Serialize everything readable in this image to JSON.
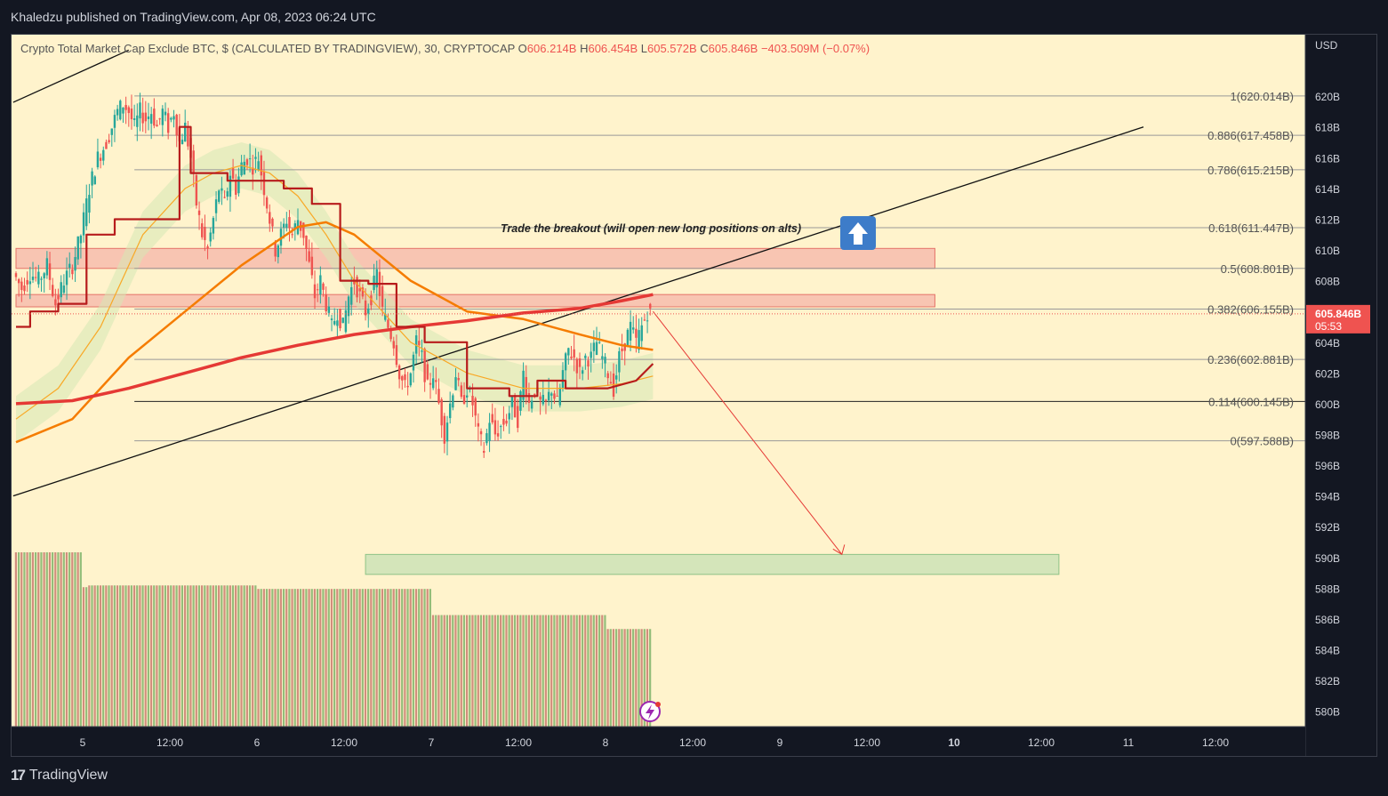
{
  "header": {
    "publisher_line": "Khaledzu published on TradingView.com, Apr 08, 2023 06:24 UTC"
  },
  "footer": {
    "logo_mark": "17",
    "logo_text": "TradingView"
  },
  "colors": {
    "background": "#fff3cc",
    "up": "#26a69a",
    "down": "#ef5350",
    "fib_line": "#999999",
    "ma_long": "#e53935",
    "ma_mid": "#f57c00",
    "ma_short": "#f9a825",
    "kijun": "#b71c1c",
    "zone_red": "#f4a7a0",
    "zone_green": "#b7dcae"
  },
  "chart_data": {
    "type": "candlestick",
    "title": "Crypto Total Market Cap Exclude BTC, $ (CALCULATED BY TRADINGVIEW), 30, CRYPTOCAP",
    "ohlc": {
      "open_label": "O",
      "open": "606.214B",
      "high_label": "H",
      "high": "606.454B",
      "low_label": "L",
      "low": "605.572B",
      "close_label": "C",
      "close": "605.846B",
      "change": "−403.509M (−0.07%)"
    },
    "currency": "USD",
    "ylim": [
      579,
      624
    ],
    "y_ticks": [
      "620B",
      "618B",
      "616B",
      "614B",
      "612B",
      "610B",
      "608B",
      "606B",
      "604B",
      "602B",
      "600B",
      "598B",
      "596B",
      "594B",
      "592B",
      "590B",
      "588B",
      "586B",
      "584B",
      "582B",
      "580B"
    ],
    "x_ticks": [
      "5",
      "12:00",
      "6",
      "12:00",
      "7",
      "12:00",
      "8",
      "12:00",
      "9",
      "12:00",
      "10",
      "12:00",
      "11",
      "12:00"
    ],
    "last_price": {
      "value": "605.846B",
      "countdown": "05:53",
      "level": 605.846
    },
    "fib_levels": [
      {
        "label": "1(620.014B)",
        "value": 620.014
      },
      {
        "label": "0.886(617.458B)",
        "value": 617.458
      },
      {
        "label": "0.786(615.215B)",
        "value": 615.215
      },
      {
        "label": "0.618(611.447B)",
        "value": 611.447
      },
      {
        "label": "0.5(608.801B)",
        "value": 608.801
      },
      {
        "label": "0.382(606.155B)",
        "value": 606.155
      },
      {
        "label": "0.236(602.881B)",
        "value": 602.881
      },
      {
        "label": "0.114(600.145B)",
        "value": 600.145
      },
      {
        "label": "0(597.588B)",
        "value": 597.588
      }
    ],
    "annotation": "Trade the breakout (will open new long positions on alts)",
    "close_path": [
      [
        0,
        608.5
      ],
      [
        3,
        607.5
      ],
      [
        6,
        608.5
      ],
      [
        9,
        608
      ],
      [
        12,
        609
      ],
      [
        15,
        606.5
      ],
      [
        18,
        608
      ],
      [
        21,
        609
      ],
      [
        24,
        611
      ],
      [
        27,
        614
      ],
      [
        30,
        616
      ],
      [
        33,
        617
      ],
      [
        35,
        618
      ],
      [
        37,
        619
      ],
      [
        39,
        619.5
      ],
      [
        41,
        619
      ],
      [
        43,
        618
      ],
      [
        45,
        619
      ],
      [
        47,
        618.5
      ],
      [
        49,
        619
      ],
      [
        51,
        618
      ],
      [
        53,
        619
      ],
      [
        55,
        618
      ],
      [
        57,
        619
      ],
      [
        59,
        617
      ],
      [
        61,
        618
      ],
      [
        63,
        616
      ],
      [
        65,
        613
      ],
      [
        67,
        611
      ],
      [
        69,
        610
      ],
      [
        71,
        612
      ],
      [
        73,
        614
      ],
      [
        75,
        613
      ],
      [
        77,
        615
      ],
      [
        79,
        614
      ],
      [
        81,
        615.5
      ],
      [
        83,
        616
      ],
      [
        85,
        615.5
      ],
      [
        87,
        616
      ],
      [
        89,
        614
      ],
      [
        91,
        612
      ],
      [
        93,
        610
      ],
      [
        95,
        611
      ],
      [
        97,
        612
      ],
      [
        99,
        611
      ],
      [
        101,
        612
      ],
      [
        103,
        611
      ],
      [
        105,
        609
      ],
      [
        107,
        607
      ],
      [
        109,
        608
      ],
      [
        111,
        606.5
      ],
      [
        113,
        605
      ],
      [
        115,
        606
      ],
      [
        117,
        605
      ],
      [
        119,
        607
      ],
      [
        121,
        608
      ],
      [
        123,
        607
      ],
      [
        125,
        606
      ],
      [
        127,
        607
      ],
      [
        129,
        608.5
      ],
      [
        131,
        606
      ],
      [
        133,
        605
      ],
      [
        135,
        604
      ],
      [
        137,
        602
      ],
      [
        139,
        601
      ],
      [
        141,
        602
      ],
      [
        143,
        604
      ],
      [
        145,
        603
      ],
      [
        147,
        601
      ],
      [
        149,
        602
      ],
      [
        151,
        600
      ],
      [
        153,
        598
      ],
      [
        155,
        600
      ],
      [
        157,
        602
      ],
      [
        159,
        600
      ],
      [
        161,
        601
      ],
      [
        163,
        600
      ],
      [
        165,
        598
      ],
      [
        167,
        597
      ],
      [
        169,
        599
      ],
      [
        171,
        598
      ],
      [
        173,
        598.5
      ],
      [
        175,
        599
      ],
      [
        177,
        600
      ],
      [
        179,
        599
      ],
      [
        181,
        602
      ],
      [
        183,
        600
      ],
      [
        185,
        601
      ],
      [
        187,
        600
      ],
      [
        189,
        600
      ],
      [
        191,
        601
      ],
      [
        193,
        600
      ],
      [
        195,
        602
      ],
      [
        197,
        603.5
      ],
      [
        199,
        603
      ],
      [
        201,
        602
      ],
      [
        203,
        603
      ],
      [
        205,
        603
      ],
      [
        207,
        604
      ],
      [
        209,
        603
      ],
      [
        211,
        602
      ],
      [
        213,
        601
      ],
      [
        215,
        603
      ],
      [
        217,
        604
      ],
      [
        219,
        605
      ],
      [
        221,
        604
      ],
      [
        223,
        605
      ],
      [
        225,
        606
      ],
      [
        226,
        605.846
      ]
    ],
    "ma_long": [
      [
        0,
        600
      ],
      [
        20,
        600.2
      ],
      [
        40,
        601
      ],
      [
        60,
        602
      ],
      [
        80,
        603
      ],
      [
        100,
        603.8
      ],
      [
        120,
        604.5
      ],
      [
        140,
        605
      ],
      [
        160,
        605.4
      ],
      [
        180,
        605.9
      ],
      [
        200,
        606.2
      ],
      [
        215,
        606.7
      ],
      [
        226,
        607.1
      ]
    ],
    "ma_mid": [
      [
        0,
        597.5
      ],
      [
        20,
        599
      ],
      [
        40,
        603
      ],
      [
        60,
        606
      ],
      [
        80,
        609
      ],
      [
        100,
        611.5
      ],
      [
        110,
        611.8
      ],
      [
        120,
        611
      ],
      [
        140,
        608
      ],
      [
        160,
        606
      ],
      [
        180,
        605.5
      ],
      [
        200,
        604.5
      ],
      [
        215,
        603.8
      ],
      [
        226,
        603.5
      ]
    ],
    "ma_short": [
      [
        0,
        599
      ],
      [
        15,
        601
      ],
      [
        30,
        605
      ],
      [
        45,
        611
      ],
      [
        60,
        614
      ],
      [
        70,
        615
      ],
      [
        80,
        615.5
      ],
      [
        90,
        615
      ],
      [
        100,
        613.5
      ],
      [
        110,
        611
      ],
      [
        120,
        608
      ],
      [
        140,
        604
      ],
      [
        160,
        602
      ],
      [
        180,
        601
      ],
      [
        200,
        601
      ],
      [
        215,
        601.3
      ],
      [
        226,
        601.8
      ]
    ],
    "kijun": [
      [
        0,
        605
      ],
      [
        5,
        605
      ],
      [
        5,
        606
      ],
      [
        15,
        606
      ],
      [
        15,
        606.5
      ],
      [
        25,
        606.5
      ],
      [
        25,
        611
      ],
      [
        35,
        611
      ],
      [
        35,
        612
      ],
      [
        58,
        612
      ],
      [
        58,
        618
      ],
      [
        62,
        618
      ],
      [
        62,
        615
      ],
      [
        75,
        615
      ],
      [
        75,
        614.5
      ],
      [
        95,
        614.5
      ],
      [
        95,
        614
      ],
      [
        105,
        614
      ],
      [
        105,
        613
      ],
      [
        115,
        613
      ],
      [
        115,
        608
      ],
      [
        125,
        608
      ],
      [
        125,
        607.8
      ],
      [
        135,
        607.8
      ],
      [
        135,
        605
      ],
      [
        145,
        605
      ],
      [
        145,
        604
      ],
      [
        160,
        604
      ],
      [
        160,
        601
      ],
      [
        175,
        601
      ],
      [
        175,
        600.5
      ],
      [
        185,
        600.5
      ],
      [
        185,
        601.5
      ],
      [
        195,
        601.5
      ],
      [
        195,
        601
      ],
      [
        210,
        601
      ],
      [
        210,
        601
      ],
      [
        220,
        601.5
      ],
      [
        226,
        602.6
      ]
    ],
    "support_line": [
      [
        -1,
        594
      ],
      [
        400,
        618
      ]
    ],
    "upper_trend_line": [
      [
        -1,
        619.6
      ],
      [
        40,
        623
      ]
    ],
    "zones": [
      {
        "y1": 608.8,
        "y2": 610.1,
        "x1": 0,
        "x2": 326,
        "color": "red"
      },
      {
        "y1": 606.3,
        "y2": 607.1,
        "x1": 0,
        "x2": 326,
        "color": "red"
      },
      {
        "y1": 588.9,
        "y2": 590.2,
        "x1": 124,
        "x2": 370,
        "color": "green"
      }
    ],
    "projection_arrow": [
      [
        226,
        606
      ],
      [
        293,
        590.2
      ]
    ],
    "volume_profile": [
      {
        "from": 0,
        "to": 24,
        "height": 1.0
      },
      {
        "from": 24,
        "to": 26,
        "height": 0.8
      },
      {
        "from": 26,
        "to": 86,
        "height": 0.81
      },
      {
        "from": 86,
        "to": 148,
        "height": 0.79
      },
      {
        "from": 148,
        "to": 210,
        "height": 0.64
      },
      {
        "from": 210,
        "to": 226,
        "height": 0.56
      }
    ]
  }
}
